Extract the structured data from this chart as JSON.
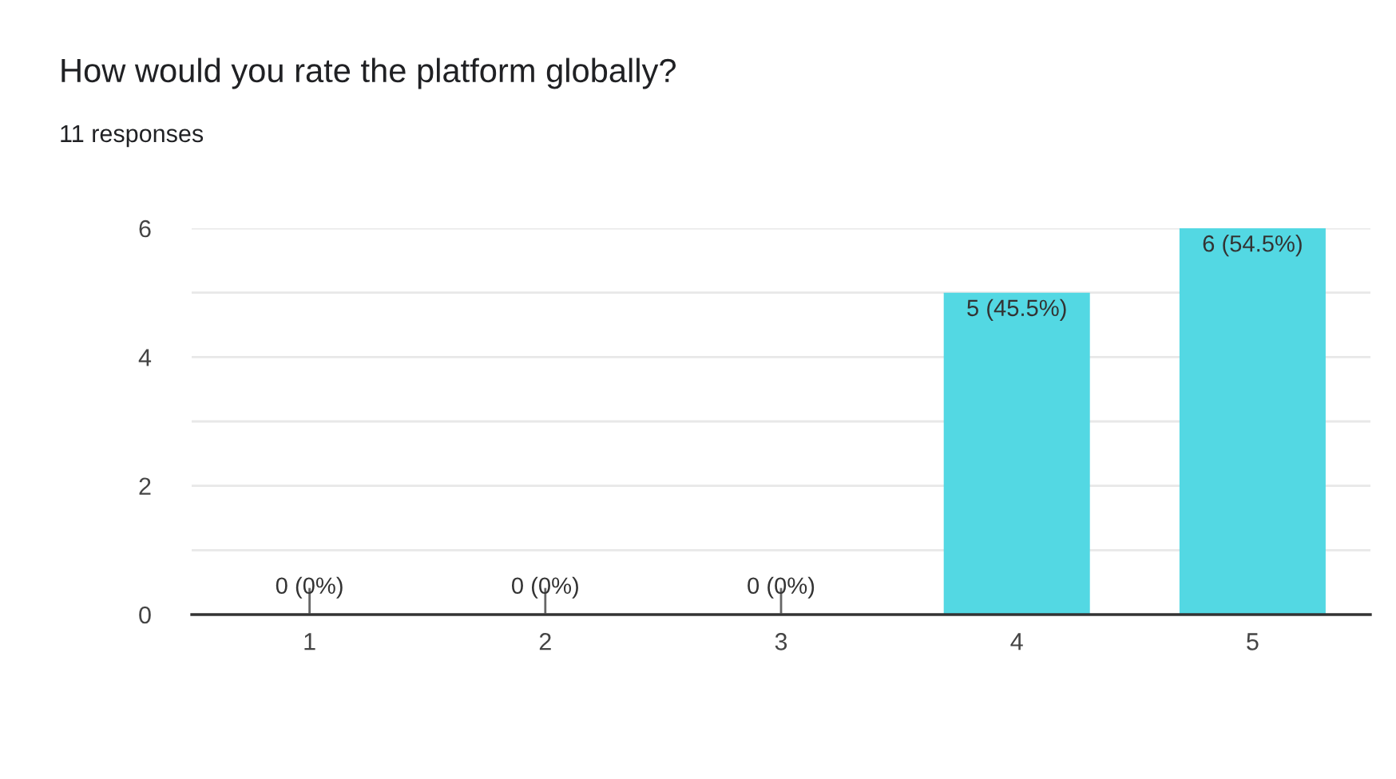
{
  "chart_data": {
    "type": "bar",
    "title": "How would you rate the platform globally?",
    "subtitle": "11 responses",
    "categories": [
      "1",
      "2",
      "3",
      "4",
      "5"
    ],
    "values": [
      0,
      0,
      0,
      5,
      6
    ],
    "value_labels": [
      "0 (0%)",
      "0 (0%)",
      "0 (0%)",
      "5 (45.5%)",
      "6 (54.5%)"
    ],
    "color": "#53d8e3",
    "ylim": [
      0,
      6
    ],
    "yticks": [
      0,
      {
        "value": 1,
        "label": null
      },
      2,
      {
        "value": 3,
        "label": null
      },
      4,
      {
        "value": 5,
        "label": null
      },
      6
    ],
    "grid": "y",
    "legend": false
  }
}
